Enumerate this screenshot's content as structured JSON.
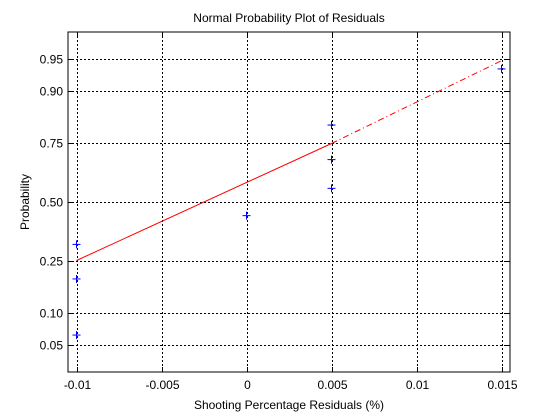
{
  "chart_data": {
    "type": "scatter",
    "title": "Normal Probability Plot of Residuals",
    "xlabel": "Shooting Percentage Residuals (%)",
    "ylabel": "Probability",
    "xlim": [
      -0.0105,
      0.0155
    ],
    "x_ticks": [
      -0.01,
      -0.005,
      0,
      0.005,
      0.01,
      0.015
    ],
    "x_tick_labels": [
      "-0.01",
      "-0.005",
      "0",
      "0.005",
      "0.01",
      "0.015"
    ],
    "y_scale": "normal-probability",
    "ylim": [
      0.025,
      0.975
    ],
    "y_ticks": [
      0.05,
      0.1,
      0.25,
      0.5,
      0.75,
      0.9,
      0.95
    ],
    "y_tick_labels": [
      "0.05",
      "0.10",
      "0.25",
      "0.50",
      "0.75",
      "0.90",
      "0.95"
    ],
    "grid": true,
    "points": [
      {
        "x": -0.01,
        "y": 0.0625
      },
      {
        "x": -0.01,
        "y": 0.1875
      },
      {
        "x": -0.01,
        "y": 0.3125
      },
      {
        "x": 0.0,
        "y": 0.4375
      },
      {
        "x": 0.005,
        "y": 0.5625
      },
      {
        "x": 0.005,
        "y": 0.6875
      },
      {
        "x": 0.005,
        "y": 0.8125
      },
      {
        "x": 0.015,
        "y": 0.9375
      }
    ],
    "reference_line": {
      "solid_from": [
        -0.01,
        0.25
      ],
      "solid_to": [
        0.005,
        0.75
      ],
      "dash_to": [
        0.015,
        0.9483
      ]
    },
    "colors": {
      "points": "#0000ff",
      "line": "#ff0000",
      "grid": "#000000",
      "axes": "#000000"
    }
  }
}
